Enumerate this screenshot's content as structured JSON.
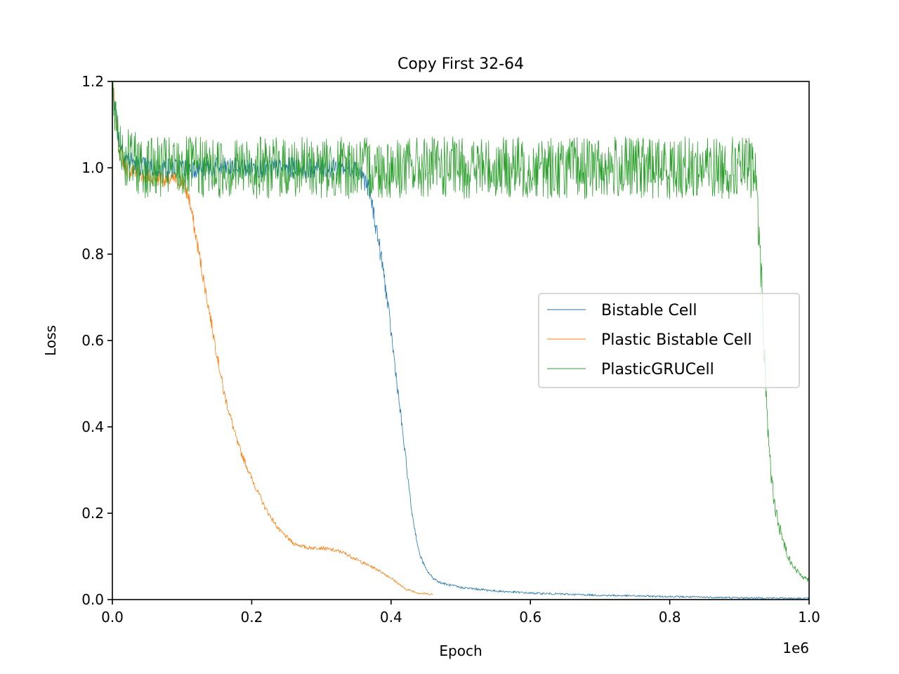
{
  "chart_data": {
    "type": "line",
    "title": "Copy First 32-64",
    "xlabel": "Epoch",
    "ylabel": "Loss",
    "x_offset_label": "1e6",
    "xlim": [
      0,
      1.0
    ],
    "ylim": [
      0,
      1.2
    ],
    "x_ticks": [
      "0.0",
      "0.2",
      "0.4",
      "0.6",
      "0.8",
      "1.0"
    ],
    "y_ticks": [
      "0.0",
      "0.2",
      "0.4",
      "0.6",
      "0.8",
      "1.0",
      "1.2"
    ],
    "legend_position": "center-right",
    "series": [
      {
        "name": "Bistable Cell",
        "color": "#1f77b4",
        "x": [
          0.0,
          0.01,
          0.02,
          0.05,
          0.1,
          0.2,
          0.3,
          0.35,
          0.36,
          0.37,
          0.38,
          0.39,
          0.4,
          0.41,
          0.42,
          0.43,
          0.44,
          0.45,
          0.46,
          0.47,
          0.48,
          0.5,
          0.55,
          0.6,
          0.7,
          0.8,
          0.9,
          1.0
        ],
        "y": [
          1.2,
          1.06,
          1.02,
          1.0,
          1.0,
          1.0,
          1.0,
          1.0,
          0.98,
          0.94,
          0.85,
          0.75,
          0.62,
          0.48,
          0.34,
          0.2,
          0.11,
          0.07,
          0.05,
          0.04,
          0.035,
          0.028,
          0.02,
          0.015,
          0.01,
          0.007,
          0.004,
          0.003
        ]
      },
      {
        "name": "Plastic Bistable Cell",
        "color": "#ff7f0e",
        "x": [
          0.0,
          0.01,
          0.02,
          0.05,
          0.1,
          0.11,
          0.12,
          0.13,
          0.14,
          0.15,
          0.16,
          0.18,
          0.2,
          0.22,
          0.24,
          0.26,
          0.28,
          0.3,
          0.33,
          0.36,
          0.38,
          0.4,
          0.42,
          0.44,
          0.46
        ],
        "y": [
          1.2,
          1.04,
          1.0,
          0.98,
          0.97,
          0.93,
          0.84,
          0.75,
          0.66,
          0.57,
          0.48,
          0.36,
          0.28,
          0.21,
          0.16,
          0.13,
          0.12,
          0.12,
          0.11,
          0.085,
          0.07,
          0.05,
          0.025,
          0.015,
          0.012
        ]
      },
      {
        "name": "PlasticGRUCell",
        "color": "#2ca02c",
        "x": [
          0.0,
          0.01,
          0.02,
          0.05,
          0.1,
          0.2,
          0.3,
          0.4,
          0.5,
          0.6,
          0.7,
          0.8,
          0.9,
          0.92,
          0.925,
          0.93,
          0.935,
          0.94,
          0.945,
          0.95,
          0.96,
          0.97,
          0.98,
          0.99,
          1.0
        ],
        "y": [
          1.18,
          1.06,
          1.02,
          1.0,
          1.0,
          1.0,
          1.0,
          1.0,
          1.0,
          1.0,
          1.0,
          1.0,
          1.0,
          1.0,
          0.95,
          0.8,
          0.6,
          0.42,
          0.3,
          0.22,
          0.15,
          0.1,
          0.07,
          0.055,
          0.045
        ]
      }
    ]
  }
}
